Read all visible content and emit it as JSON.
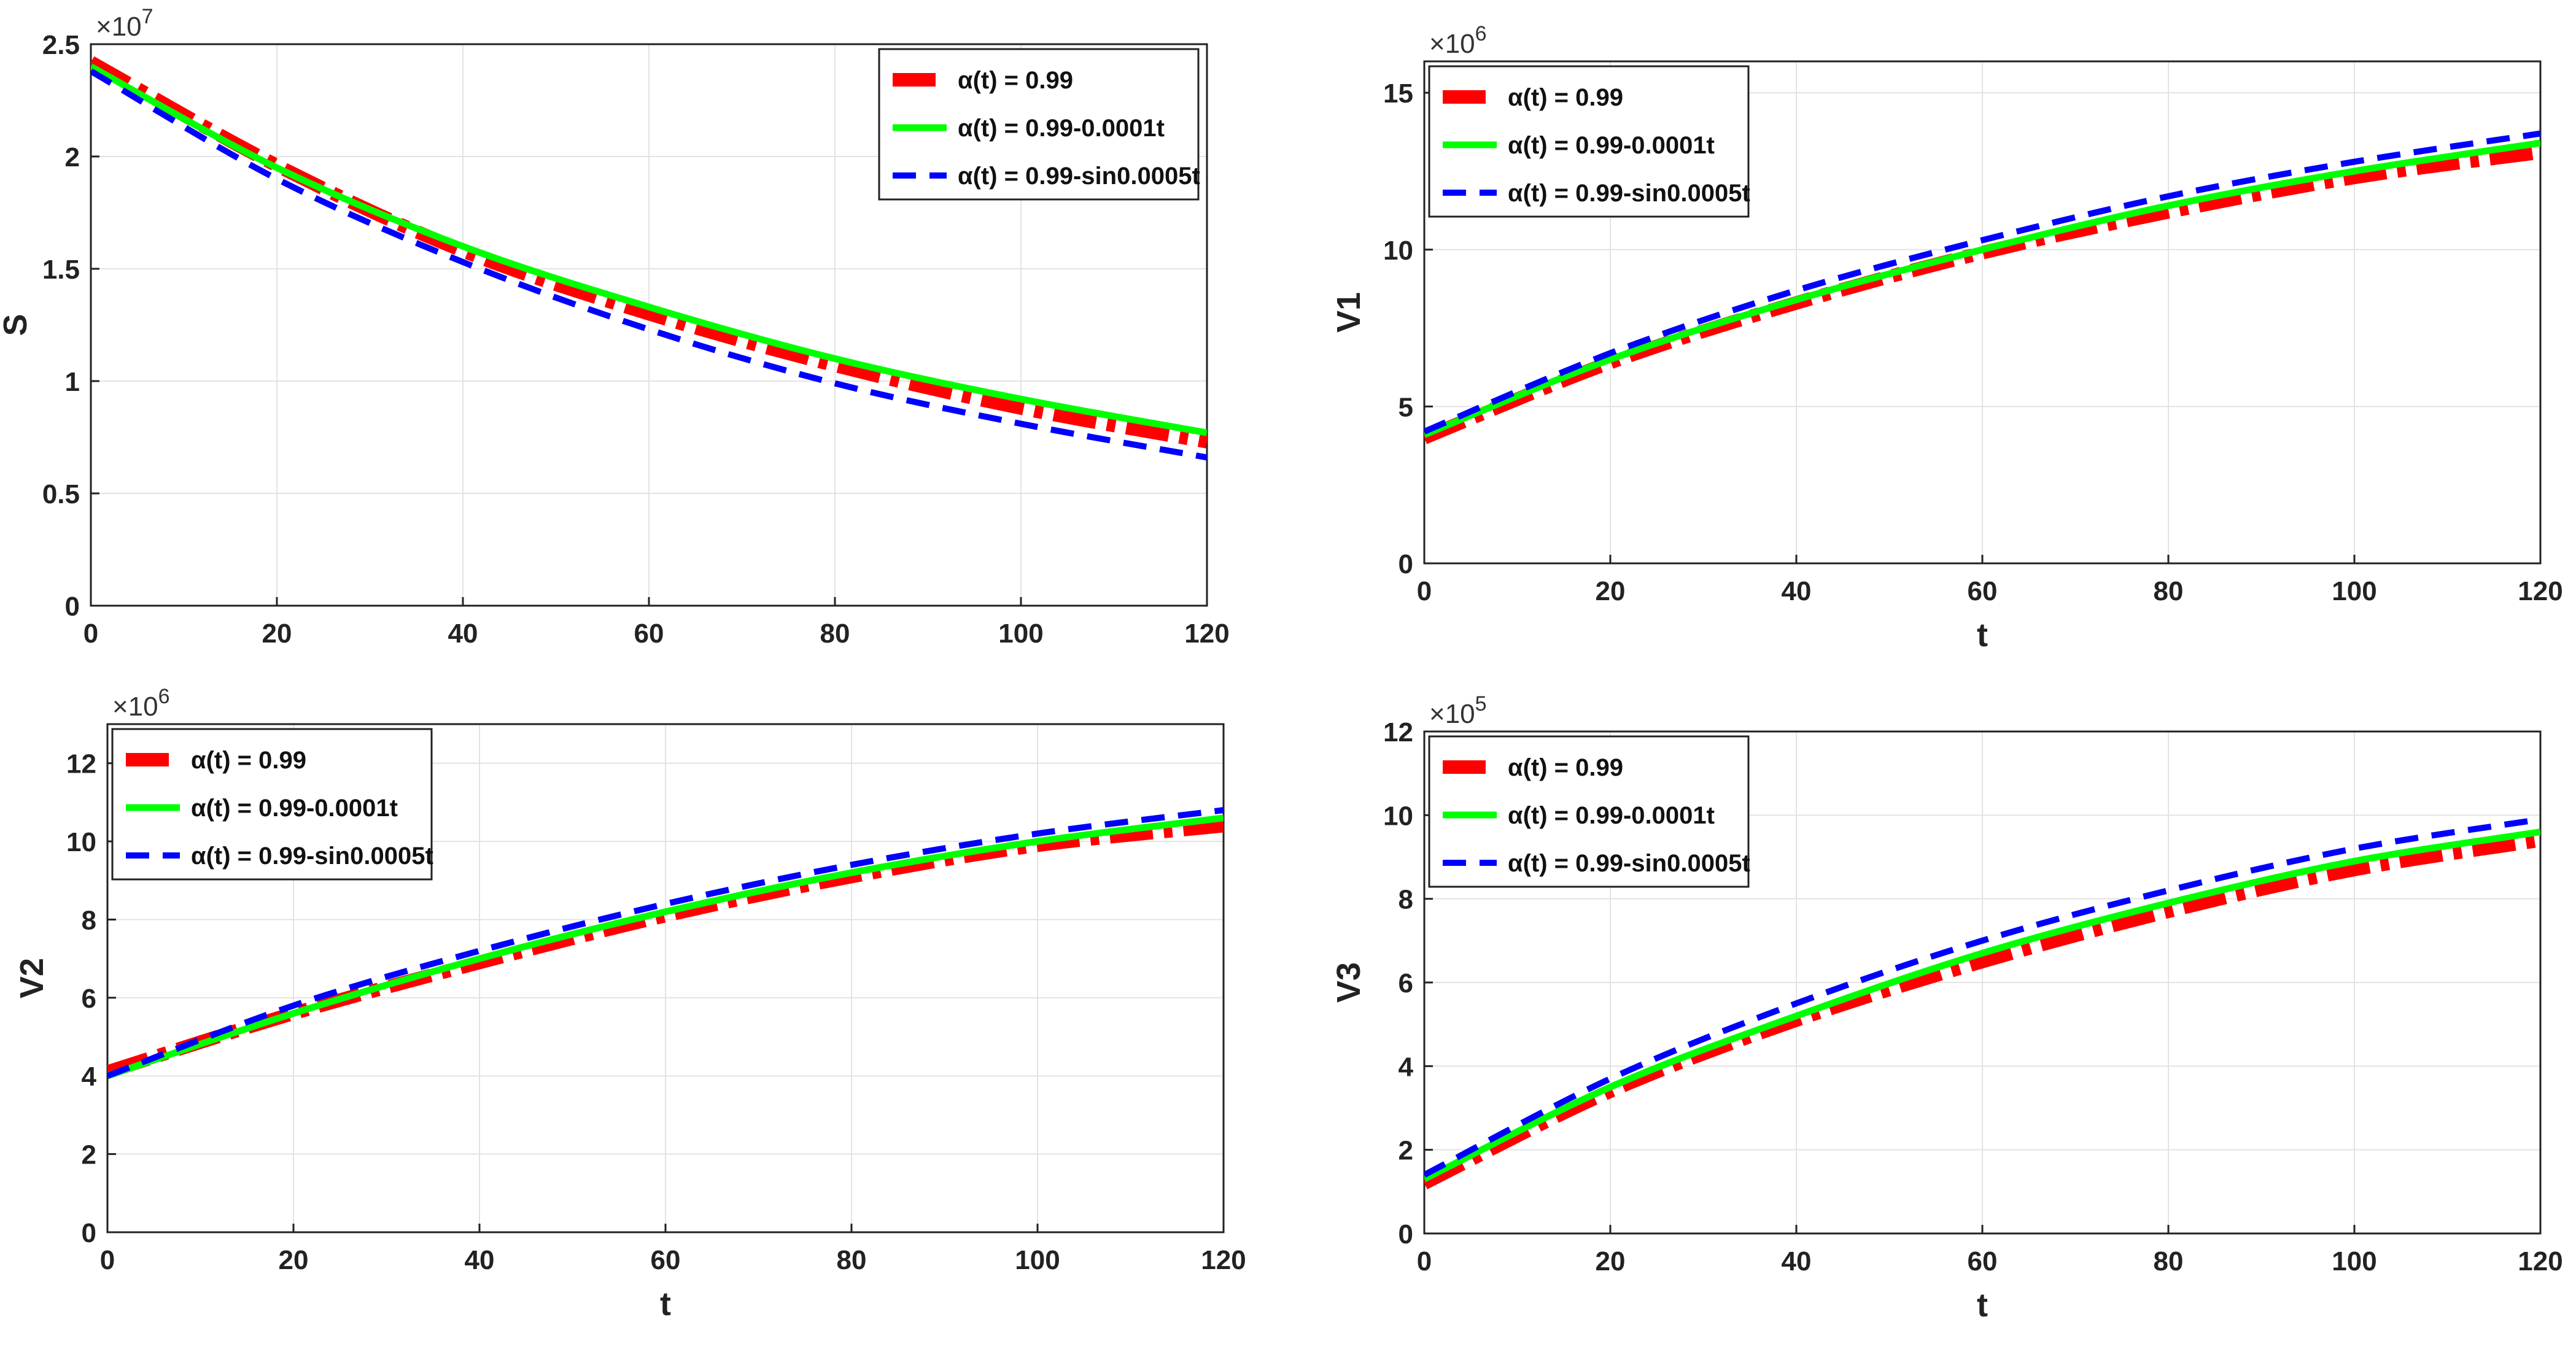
{
  "colors": {
    "series_a": "#ff0000",
    "series_b": "#00ff00",
    "series_c": "#0000ff",
    "grid": "#e3e3e3",
    "axis": "#222222"
  },
  "legend_labels": [
    "α(t) = 0.99",
    "α(t) = 0.99-0.0001t",
    "α(t) = 0.99-sin0.0005t"
  ],
  "chart_data": [
    {
      "type": "line",
      "title": "",
      "xlabel": "",
      "ylabel": "S",
      "exponent": "×10",
      "exponent_power": "7",
      "xlim": [
        0,
        120
      ],
      "ylim": [
        0,
        2.5
      ],
      "x_ticks": [
        "0",
        "20",
        "40",
        "60",
        "80",
        "100",
        "120"
      ],
      "y_ticks": [
        "0",
        "0.5",
        "1",
        "1.5",
        "2",
        "2.5"
      ],
      "legend_position": "top-right",
      "x": [
        0,
        20,
        40,
        60,
        80,
        100,
        120
      ],
      "series": [
        {
          "name": "α(t) = 0.99",
          "values": [
            2.42,
            1.96,
            1.58,
            1.3,
            1.07,
            0.88,
            0.73
          ]
        },
        {
          "name": "α(t) = 0.99-0.0001t",
          "values": [
            2.4,
            1.95,
            1.6,
            1.33,
            1.1,
            0.92,
            0.77
          ]
        },
        {
          "name": "α(t) = 0.99-sin0.0005t",
          "values": [
            2.38,
            1.9,
            1.53,
            1.23,
            0.99,
            0.81,
            0.66
          ]
        }
      ]
    },
    {
      "type": "line",
      "title": "",
      "xlabel": "t",
      "ylabel": "V1",
      "exponent": "×10",
      "exponent_power": "6",
      "xlim": [
        0,
        120
      ],
      "ylim": [
        0,
        16
      ],
      "x_ticks": [
        "0",
        "20",
        "40",
        "60",
        "80",
        "100",
        "120"
      ],
      "y_ticks": [
        "0",
        "5",
        "10",
        "15"
      ],
      "legend_position": "top-left",
      "x": [
        0,
        20,
        40,
        60,
        80,
        100,
        120
      ],
      "series": [
        {
          "name": "α(t) = 0.99",
          "values": [
            4.0,
            6.4,
            8.3,
            9.9,
            11.2,
            12.3,
            13.1
          ]
        },
        {
          "name": "α(t) = 0.99-0.0001t",
          "values": [
            4.1,
            6.5,
            8.4,
            10.0,
            11.4,
            12.5,
            13.4
          ]
        },
        {
          "name": "α(t) = 0.99-sin0.0005t",
          "values": [
            4.2,
            6.7,
            8.7,
            10.3,
            11.7,
            12.8,
            13.7
          ]
        }
      ]
    },
    {
      "type": "line",
      "title": "",
      "xlabel": "t",
      "ylabel": "V2",
      "exponent": "×10",
      "exponent_power": "6",
      "xlim": [
        0,
        120
      ],
      "ylim": [
        0,
        13
      ],
      "x_ticks": [
        "0",
        "20",
        "40",
        "60",
        "80",
        "100",
        "120"
      ],
      "y_ticks": [
        "0",
        "2",
        "4",
        "6",
        "8",
        "10",
        "12"
      ],
      "legend_position": "top-left",
      "x": [
        0,
        20,
        40,
        60,
        80,
        100,
        120
      ],
      "series": [
        {
          "name": "α(t) = 0.99",
          "values": [
            4.1,
            5.6,
            6.9,
            8.1,
            9.1,
            9.9,
            10.4
          ]
        },
        {
          "name": "α(t) = 0.99-0.0001t",
          "values": [
            4.0,
            5.6,
            7.0,
            8.2,
            9.2,
            10.0,
            10.6
          ]
        },
        {
          "name": "α(t) = 0.99-sin0.0005t",
          "values": [
            4.0,
            5.8,
            7.2,
            8.4,
            9.4,
            10.2,
            10.8
          ]
        }
      ]
    },
    {
      "type": "line",
      "title": "",
      "xlabel": "t",
      "ylabel": "V3",
      "exponent": "×10",
      "exponent_power": "5",
      "xlim": [
        0,
        120
      ],
      "ylim": [
        0,
        12
      ],
      "x_ticks": [
        "0",
        "20",
        "40",
        "60",
        "80",
        "100",
        "120"
      ],
      "y_ticks": [
        "0",
        "2",
        "4",
        "6",
        "8",
        "10",
        "12"
      ],
      "legend_position": "top-left",
      "x": [
        0,
        20,
        40,
        60,
        80,
        100,
        120
      ],
      "series": [
        {
          "name": "α(t) = 0.99",
          "values": [
            1.2,
            3.4,
            5.1,
            6.5,
            7.7,
            8.7,
            9.4
          ]
        },
        {
          "name": "α(t) = 0.99-0.0001t",
          "values": [
            1.3,
            3.5,
            5.2,
            6.7,
            7.9,
            8.9,
            9.6
          ]
        },
        {
          "name": "α(t) = 0.99-sin0.0005t",
          "values": [
            1.4,
            3.7,
            5.5,
            7.0,
            8.2,
            9.2,
            9.9
          ]
        }
      ]
    }
  ]
}
